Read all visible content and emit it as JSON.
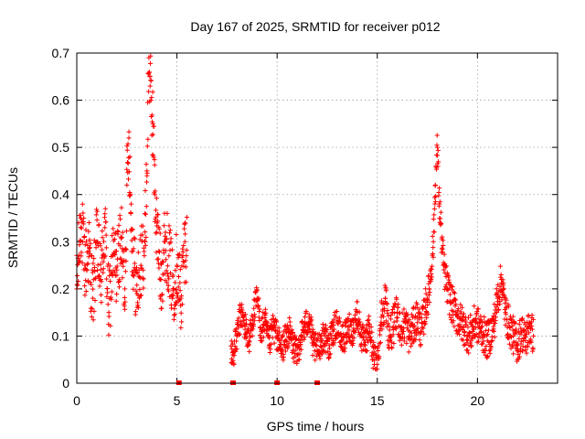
{
  "chart_data": {
    "type": "scatter",
    "title": "Day 167 of 2025, SRMTID for receiver p012",
    "xlabel": "GPS time / hours",
    "ylabel": "SRMTID / TECUs",
    "xlim": [
      0,
      24
    ],
    "ylim": [
      0,
      0.7
    ],
    "xticks": [
      0,
      5,
      10,
      15,
      20
    ],
    "xtick_labels": [
      "0",
      "5",
      "10",
      "15",
      "20"
    ],
    "yticks": [
      0,
      0.1,
      0.2,
      0.3,
      0.4,
      0.5,
      0.6,
      0.7
    ],
    "ytick_labels": [
      "0",
      "0.1",
      "0.2",
      "0.3",
      "0.4",
      "0.5",
      "0.6",
      "0.7"
    ],
    "grid": true,
    "marker": "+",
    "color": "#ff0000",
    "segments": [
      {
        "t_start": 0.0,
        "t_end": 5.5,
        "base": 0.25,
        "spread": 0.1
      },
      {
        "t_start": 7.7,
        "t_end": 15.0,
        "base": 0.1,
        "spread": 0.04
      },
      {
        "t_start": 15.0,
        "t_end": 23.0,
        "base": 0.12,
        "spread": 0.05
      }
    ],
    "series": [
      {
        "name": "SRMTID p012",
        "x": [
          0.0,
          0.2,
          0.4,
          0.6,
          0.8,
          1.0,
          1.2,
          1.4,
          1.6,
          1.8,
          2.0,
          2.2,
          2.4,
          2.5,
          2.6,
          2.7,
          2.8,
          3.0,
          3.2,
          3.4,
          3.5,
          3.6,
          3.65,
          3.7,
          3.8,
          3.9,
          4.0,
          4.1,
          4.2,
          4.4,
          4.6,
          4.8,
          5.0,
          5.2,
          5.4,
          7.8,
          8.0,
          8.2,
          8.4,
          8.6,
          8.8,
          9.0,
          9.2,
          9.4,
          9.6,
          9.8,
          10.0,
          10.2,
          10.4,
          10.6,
          10.8,
          11.0,
          11.2,
          11.4,
          11.6,
          11.8,
          12.0,
          12.2,
          12.4,
          12.6,
          12.8,
          13.0,
          13.2,
          13.4,
          13.6,
          13.8,
          14.0,
          14.2,
          14.4,
          14.6,
          14.8,
          15.0,
          15.2,
          15.4,
          15.6,
          15.8,
          16.0,
          16.2,
          16.4,
          16.6,
          16.8,
          17.0,
          17.2,
          17.4,
          17.6,
          17.8,
          17.9,
          18.0,
          18.1,
          18.3,
          18.5,
          18.7,
          19.0,
          19.3,
          19.6,
          19.9,
          20.2,
          20.5,
          20.8,
          21.0,
          21.2,
          21.4,
          21.6,
          21.8,
          22.0,
          22.2,
          22.4,
          22.6,
          22.8
        ],
        "y": [
          0.2,
          0.35,
          0.25,
          0.28,
          0.18,
          0.3,
          0.22,
          0.33,
          0.15,
          0.27,
          0.24,
          0.31,
          0.2,
          0.42,
          0.52,
          0.36,
          0.28,
          0.19,
          0.25,
          0.3,
          0.45,
          0.69,
          0.65,
          0.6,
          0.55,
          0.4,
          0.32,
          0.28,
          0.22,
          0.3,
          0.27,
          0.2,
          0.25,
          0.18,
          0.3,
          0.06,
          0.1,
          0.15,
          0.12,
          0.09,
          0.14,
          0.18,
          0.11,
          0.13,
          0.08,
          0.12,
          0.1,
          0.07,
          0.09,
          0.11,
          0.08,
          0.06,
          0.1,
          0.12,
          0.14,
          0.08,
          0.07,
          0.09,
          0.1,
          0.08,
          0.11,
          0.13,
          0.09,
          0.1,
          0.12,
          0.11,
          0.15,
          0.1,
          0.08,
          0.12,
          0.06,
          0.04,
          0.14,
          0.18,
          0.1,
          0.12,
          0.15,
          0.11,
          0.13,
          0.1,
          0.12,
          0.14,
          0.11,
          0.16,
          0.2,
          0.3,
          0.42,
          0.5,
          0.38,
          0.25,
          0.2,
          0.17,
          0.14,
          0.12,
          0.1,
          0.13,
          0.11,
          0.09,
          0.12,
          0.18,
          0.22,
          0.15,
          0.12,
          0.1,
          0.08,
          0.11,
          0.09,
          0.12,
          0.1
        ]
      }
    ],
    "zero_markers_x": [
      5.1,
      7.8,
      10.0,
      12.0
    ]
  }
}
